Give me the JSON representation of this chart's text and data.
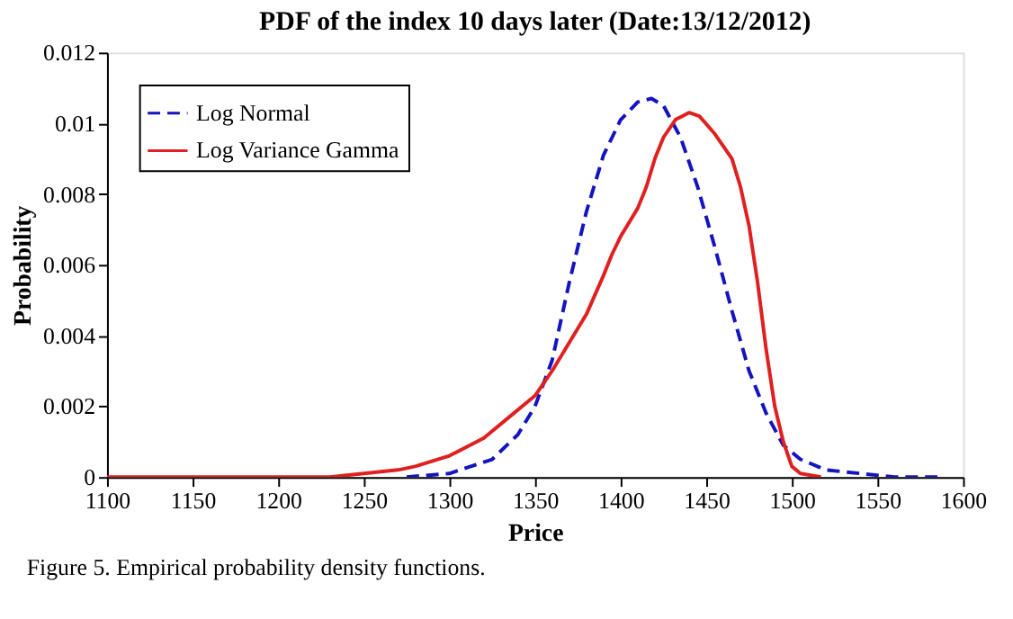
{
  "chart_data": {
    "type": "line",
    "title": "PDF of the index 10 days later (Date:13/12/2012)",
    "xlabel": "Price",
    "ylabel": "Probability",
    "annotations": [
      "Figure 5. Empirical probability density functions."
    ],
    "xlim": [
      1100,
      1600
    ],
    "xticks": [
      1100,
      1150,
      1200,
      1250,
      1300,
      1350,
      1400,
      1450,
      1500,
      1550,
      1600
    ],
    "ylim": [
      0,
      0.012
    ],
    "yticks": [
      0,
      0.002,
      0.004,
      0.006,
      0.008,
      0.01,
      0.012
    ],
    "grid": false,
    "legend": "top left",
    "marker": "none",
    "series": [
      {
        "name": "Log Normal",
        "color": "#1414c0",
        "line_style": "dashed",
        "x": [
          1275,
          1300,
          1325,
          1340,
          1350,
          1360,
          1370,
          1380,
          1390,
          1400,
          1410,
          1418,
          1425,
          1435,
          1445,
          1455,
          1465,
          1475,
          1485,
          1495,
          1505,
          1520,
          1540,
          1560,
          1585
        ],
        "values": [
          0,
          0.0001,
          0.0005,
          0.0012,
          0.002,
          0.0033,
          0.0055,
          0.0075,
          0.0091,
          0.0101,
          0.0106,
          0.0107,
          0.0105,
          0.0096,
          0.0082,
          0.0065,
          0.0047,
          0.003,
          0.0018,
          0.0009,
          0.0005,
          0.0002,
          0.0001,
          0,
          0
        ]
      },
      {
        "name": "Log Variance Gamma",
        "color": "#e02020",
        "line_style": "solid",
        "x": [
          1100,
          1230,
          1250,
          1270,
          1280,
          1300,
          1320,
          1335,
          1350,
          1360,
          1370,
          1380,
          1390,
          1395,
          1400,
          1410,
          1415,
          1420,
          1425,
          1432,
          1440,
          1446,
          1455,
          1465,
          1470,
          1475,
          1480,
          1485,
          1490,
          1495,
          1500,
          1505,
          1517
        ],
        "values": [
          0,
          0,
          0.0001,
          0.0002,
          0.0003,
          0.0006,
          0.0011,
          0.0017,
          0.0023,
          0.003,
          0.0038,
          0.0046,
          0.0057,
          0.0063,
          0.0068,
          0.0076,
          0.0082,
          0.009,
          0.0096,
          0.0101,
          0.0103,
          0.0102,
          0.0097,
          0.009,
          0.0082,
          0.0071,
          0.0055,
          0.0036,
          0.002,
          0.001,
          0.0003,
          0.0001,
          0
        ]
      }
    ]
  }
}
